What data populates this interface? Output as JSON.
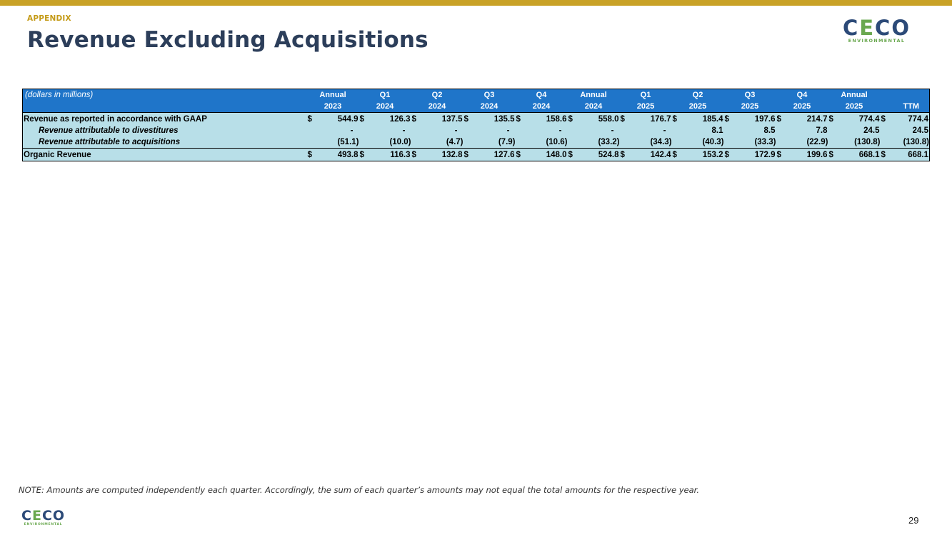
{
  "header": {
    "section": "APPENDIX",
    "title": "Revenue Excluding Acquisitions",
    "logo": {
      "word": "CECO",
      "sub": "ENVIRONMENTAL"
    }
  },
  "table": {
    "unit_note": "(dollars in millions)",
    "columns": [
      {
        "line1": "Annual",
        "line2": "2023"
      },
      {
        "line1": "Q1",
        "line2": "2024"
      },
      {
        "line1": "Q2",
        "line2": "2024"
      },
      {
        "line1": "Q3",
        "line2": "2024"
      },
      {
        "line1": "Q4",
        "line2": "2024"
      },
      {
        "line1": "Annual",
        "line2": "2024"
      },
      {
        "line1": "Q1",
        "line2": "2025"
      },
      {
        "line1": "Q2",
        "line2": "2025"
      },
      {
        "line1": "Q3",
        "line2": "2025"
      },
      {
        "line1": "Q4",
        "line2": "2025"
      },
      {
        "line1": "Annual",
        "line2": "2025"
      },
      {
        "line1": "",
        "line2": "TTM"
      }
    ],
    "rows": [
      {
        "label": "Revenue as reported in accordance with GAAP",
        "dollar": "$",
        "values": [
          "544.9",
          "126.3",
          "137.5",
          "135.5",
          "158.6",
          "558.0",
          "176.7",
          "185.4",
          "197.6",
          "214.7",
          "774.4",
          "774.4"
        ]
      },
      {
        "label": "Revenue attributable to divestitures",
        "dollar": "",
        "values": [
          "-",
          "-",
          "-",
          "-",
          "-",
          "-",
          "-",
          "8.1",
          "8.5",
          "7.8",
          "24.5",
          "24.5"
        ]
      },
      {
        "label": "Revenue attributable to acquisitions",
        "dollar": "",
        "values": [
          "(51.1)",
          "(10.0)",
          "(4.7)",
          "(7.9)",
          "(10.6)",
          "(33.2)",
          "(34.3)",
          "(40.3)",
          "(33.3)",
          "(22.9)",
          "(130.8)",
          "(130.8)"
        ]
      },
      {
        "label": "Organic Revenue",
        "dollar": "$",
        "values": [
          "493.8",
          "116.3",
          "132.8",
          "127.6",
          "148.0",
          "524.8",
          "142.4",
          "153.2",
          "172.9",
          "199.6",
          "668.1",
          "668.1"
        ]
      }
    ]
  },
  "footer": {
    "note": "NOTE: Amounts are computed independently each quarter. Accordingly, the sum of each quarter’s amounts may not equal the total amounts for the respective year.",
    "page": "29"
  }
}
